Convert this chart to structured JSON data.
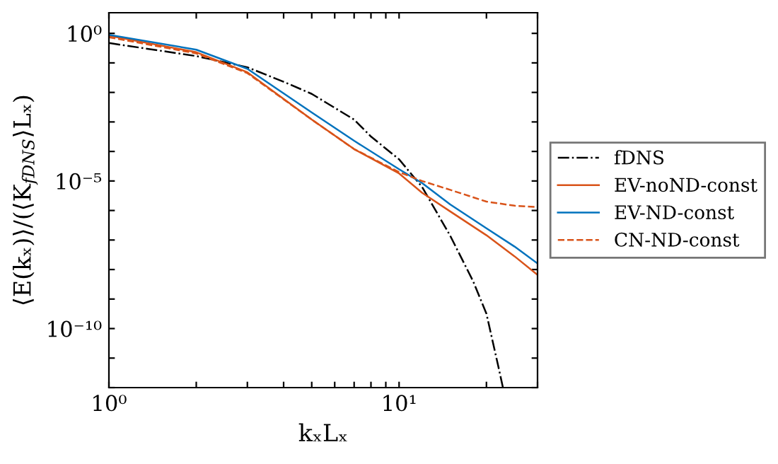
{
  "chart_data": {
    "type": "line",
    "xlabel": "kₓLₓ",
    "ylabel": "⟨E(kₓ)⟩/(⟨K$_{fDNS}$⟩Lₓ)",
    "log": "xy",
    "xlim": [
      1,
      30
    ],
    "ylim": [
      1e-12,
      5
    ],
    "xticks": [
      {
        "value": 1,
        "label": "10⁰"
      },
      {
        "value": 2,
        "label": null
      },
      {
        "value": 3,
        "label": null
      },
      {
        "value": 4,
        "label": null
      },
      {
        "value": 5,
        "label": null
      },
      {
        "value": 6,
        "label": null
      },
      {
        "value": 7,
        "label": null
      },
      {
        "value": 8,
        "label": null
      },
      {
        "value": 9,
        "label": null
      },
      {
        "value": 10,
        "label": "10¹"
      },
      {
        "value": 20,
        "label": null
      },
      {
        "value": 30,
        "label": null
      }
    ],
    "yticks": [
      {
        "value": 1e-12,
        "label": null
      },
      {
        "value": 1e-11,
        "label": null
      },
      {
        "value": 1e-10,
        "label": "10⁻¹⁰"
      },
      {
        "value": 1e-09,
        "label": null
      },
      {
        "value": 1e-08,
        "label": null
      },
      {
        "value": 1e-07,
        "label": null
      },
      {
        "value": 1e-06,
        "label": null
      },
      {
        "value": 1e-05,
        "label": "10⁻⁵"
      },
      {
        "value": 0.0001,
        "label": null
      },
      {
        "value": 0.001,
        "label": null
      },
      {
        "value": 0.01,
        "label": null
      },
      {
        "value": 0.1,
        "label": null
      },
      {
        "value": 1,
        "label": "10⁰"
      }
    ],
    "legend": "right",
    "grid": false,
    "series": [
      {
        "name": "fDNS",
        "color": "#000000",
        "line_style": "dashdot",
        "x": [
          1,
          2,
          3,
          4,
          5,
          7,
          8,
          10,
          12,
          15,
          18,
          20,
          22,
          22.8
        ],
        "values": [
          0.47,
          0.17,
          0.071,
          0.023,
          0.0089,
          0.0012,
          0.00032,
          5.4e-05,
          6.3e-06,
          1.4e-07,
          4e-09,
          3.2e-10,
          5e-12,
          1e-12
        ]
      },
      {
        "name": "EV-noND-const",
        "color": "#d95319",
        "line_style": "solid",
        "x": [
          1,
          2,
          3,
          5,
          7,
          10,
          12,
          15,
          20,
          25,
          30
        ],
        "values": [
          0.83,
          0.23,
          0.048,
          0.0012,
          0.00012,
          1.8e-05,
          4e-06,
          9.3e-07,
          1.45e-07,
          2.8e-08,
          6.6e-09
        ]
      },
      {
        "name": "EV-ND-const",
        "color": "#0072bd",
        "line_style": "solid",
        "x": [
          1,
          2,
          3,
          5,
          7,
          10,
          12,
          15,
          20,
          25,
          30
        ],
        "values": [
          0.89,
          0.28,
          0.063,
          0.0021,
          0.00023,
          2.5e-05,
          8.5e-06,
          1.6e-06,
          2.5e-07,
          6e-08,
          1.6e-08
        ]
      },
      {
        "name": "CN-ND-const",
        "color": "#d95319",
        "line_style": "dashed",
        "x": [
          1,
          2,
          3,
          5,
          7,
          10,
          12,
          15,
          20,
          25,
          30
        ],
        "values": [
          0.74,
          0.21,
          0.045,
          0.0012,
          0.00012,
          2e-05,
          1e-05,
          5e-06,
          2e-06,
          1.45e-06,
          1.3e-06
        ]
      }
    ]
  }
}
